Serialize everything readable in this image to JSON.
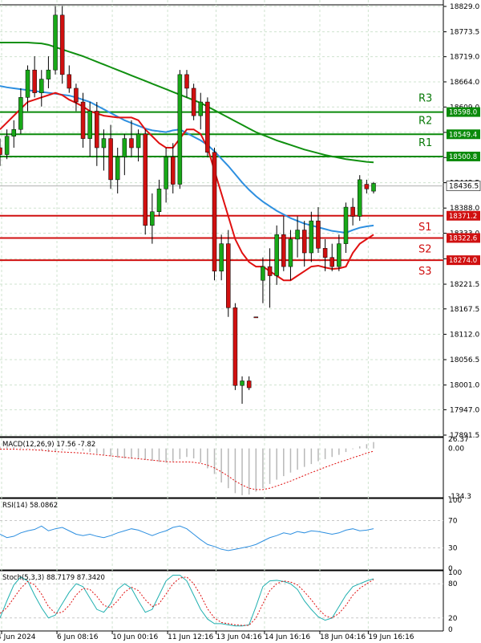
{
  "chart_data": [
    {
      "type": "candlestick",
      "symbol_pane": "main",
      "yticks": [
        "18829.0",
        "18773.5",
        "18719.0",
        "18664.0",
        "18609.0",
        "18553.5",
        "18498.5",
        "18443.5",
        "18388.0",
        "18333.0",
        "18277.0",
        "18221.5",
        "18167.5",
        "18112.0",
        "18056.5",
        "18001.0",
        "17947.0",
        "17891.5"
      ],
      "ylim": [
        17891.5,
        18829.0
      ],
      "xticks": [
        "4 Jun 2024",
        "6 Jun 08:16",
        "10 Jun 00:16",
        "11 Jun 12:16",
        "13 Jun 04:16",
        "14 Jun 16:16",
        "18 Jun 04:16",
        "19 Jun 16:16"
      ],
      "current_price": "18436.5",
      "levels": [
        {
          "name": "R3",
          "price": "18598.0",
          "value": 18598.0,
          "kind": "resistance",
          "color": "#0a8a0a"
        },
        {
          "name": "R2",
          "price": "18549.4",
          "value": 18549.4,
          "kind": "resistance",
          "color": "#0a8a0a"
        },
        {
          "name": "R1",
          "price": "18500.8",
          "value": 18500.8,
          "kind": "resistance",
          "color": "#0a8a0a"
        },
        {
          "name": "S1",
          "price": "18371.2",
          "value": 18371.2,
          "kind": "support",
          "color": "#d01010"
        },
        {
          "name": "S2",
          "price": "18322.6",
          "value": 18322.6,
          "kind": "support",
          "color": "#d01010"
        },
        {
          "name": "S3",
          "price": "18274.0",
          "value": 18274.0,
          "kind": "support",
          "color": "#d01010"
        }
      ],
      "candles": [
        [
          18520,
          18540,
          18480,
          18505
        ],
        [
          18505,
          18560,
          18495,
          18545
        ],
        [
          18545,
          18580,
          18520,
          18560
        ],
        [
          18560,
          18650,
          18550,
          18630
        ],
        [
          18630,
          18700,
          18600,
          18690
        ],
        [
          18690,
          18720,
          18630,
          18640
        ],
        [
          18640,
          18690,
          18610,
          18670
        ],
        [
          18670,
          18720,
          18650,
          18690
        ],
        [
          18690,
          18830,
          18680,
          18810
        ],
        [
          18810,
          18830,
          18660,
          18680
        ],
        [
          18680,
          18700,
          18640,
          18650
        ],
        [
          18650,
          18660,
          18600,
          18620
        ],
        [
          18620,
          18640,
          18520,
          18540
        ],
        [
          18540,
          18620,
          18500,
          18600
        ],
        [
          18600,
          18620,
          18480,
          18520
        ],
        [
          18520,
          18560,
          18470,
          18540
        ],
        [
          18540,
          18570,
          18430,
          18450
        ],
        [
          18450,
          18520,
          18420,
          18500
        ],
        [
          18500,
          18550,
          18460,
          18540
        ],
        [
          18540,
          18580,
          18500,
          18520
        ],
        [
          18520,
          18560,
          18490,
          18550
        ],
        [
          18550,
          18560,
          18330,
          18350
        ],
        [
          18350,
          18420,
          18310,
          18380
        ],
        [
          18380,
          18450,
          18370,
          18430
        ],
        [
          18430,
          18520,
          18400,
          18500
        ],
        [
          18500,
          18530,
          18420,
          18440
        ],
        [
          18440,
          18690,
          18430,
          18680
        ],
        [
          18680,
          18690,
          18630,
          18650
        ],
        [
          18650,
          18660,
          18580,
          18590
        ],
        [
          18590,
          18640,
          18560,
          18620
        ],
        [
          18620,
          18630,
          18500,
          18510
        ],
        [
          18510,
          18520,
          18230,
          18250
        ],
        [
          18250,
          18330,
          18230,
          18310
        ],
        [
          18310,
          18340,
          18150,
          18170
        ],
        [
          18170,
          18180,
          17990,
          18000
        ],
        [
          18000,
          18020,
          17960,
          18010
        ],
        [
          18010,
          18020,
          17990,
          17995
        ],
        [
          18150,
          18150,
          18148,
          18148
        ],
        [
          18230,
          18280,
          18180,
          18260
        ],
        [
          18260,
          18300,
          18170,
          18240
        ],
        [
          18240,
          18350,
          18220,
          18330
        ],
        [
          18330,
          18370,
          18250,
          18260
        ],
        [
          18260,
          18340,
          18230,
          18320
        ],
        [
          18320,
          18370,
          18280,
          18340
        ],
        [
          18340,
          18360,
          18260,
          18290
        ],
        [
          18290,
          18380,
          18270,
          18360
        ],
        [
          18360,
          18390,
          18290,
          18300
        ],
        [
          18300,
          18320,
          18250,
          18280
        ],
        [
          18280,
          18310,
          18250,
          18260
        ],
        [
          18260,
          18330,
          18250,
          18310
        ],
        [
          18310,
          18400,
          18290,
          18390
        ],
        [
          18390,
          18410,
          18350,
          18370
        ],
        [
          18370,
          18460,
          18360,
          18450
        ],
        [
          18440,
          18450,
          18420,
          18430
        ],
        [
          18425,
          18445,
          18420,
          18442
        ]
      ],
      "moving_averages": [
        {
          "color": "#109010",
          "values": [
            18750,
            18750,
            18750,
            18750,
            18750,
            18749,
            18748,
            18745,
            18740,
            18735,
            18730,
            18725,
            18720,
            18714,
            18708,
            18702,
            18696,
            18690,
            18684,
            18678,
            18672,
            18666,
            18660,
            18654,
            18648,
            18642,
            18636,
            18630,
            18624,
            18618,
            18610,
            18602,
            18594,
            18586,
            18578,
            18570,
            18562,
            18554,
            18548,
            18542,
            18536,
            18531,
            18526,
            18521,
            18516,
            18512,
            18508,
            18504,
            18501,
            18498,
            18495,
            18493,
            18491,
            18489,
            18488
          ]
        },
        {
          "color": "#2d8fe0",
          "values": [
            18655,
            18652,
            18650,
            18648,
            18646,
            18644,
            18642,
            18640,
            18638,
            18636,
            18634,
            18630,
            18625,
            18620,
            18612,
            18604,
            18596,
            18588,
            18580,
            18574,
            18568,
            18562,
            18558,
            18556,
            18554,
            18558,
            18560,
            18552,
            18544,
            18536,
            18526,
            18512,
            18496,
            18480,
            18462,
            18444,
            18428,
            18414,
            18402,
            18392,
            18382,
            18374,
            18366,
            18360,
            18354,
            18350,
            18346,
            18342,
            18338,
            18336,
            18334,
            18340,
            18345,
            18348,
            18350
          ]
        },
        {
          "color": "#e01010",
          "values": [
            18560,
            18575,
            18590,
            18605,
            18620,
            18625,
            18630,
            18635,
            18640,
            18635,
            18625,
            18618,
            18610,
            18600,
            18595,
            18590,
            18588,
            18586,
            18586,
            18586,
            18580,
            18560,
            18545,
            18530,
            18520,
            18520,
            18540,
            18560,
            18560,
            18550,
            18520,
            18470,
            18420,
            18370,
            18320,
            18290,
            18270,
            18260,
            18260,
            18250,
            18240,
            18230,
            18230,
            18240,
            18250,
            18260,
            18262,
            18258,
            18255,
            18256,
            18260,
            18290,
            18310,
            18320,
            18330
          ]
        }
      ]
    },
    {
      "type": "macd",
      "label": "MACD(12,26,9) 17.56 -7.82",
      "yticks": [
        "26.37",
        "0.00",
        "-134.3"
      ],
      "ylim": [
        -134.3,
        26.37
      ],
      "hist": [
        5,
        5,
        4,
        3,
        1,
        -2,
        -6,
        -10,
        -8,
        -5,
        -3,
        -4,
        -6,
        -10,
        -14,
        -18,
        -22,
        -26,
        -28,
        -29,
        -30,
        -32,
        -35,
        -38,
        -40,
        -36,
        -30,
        -24,
        -28,
        -40,
        -56,
        -72,
        -96,
        -112,
        -126,
        -132,
        -130,
        -122,
        -112,
        -100,
        -88,
        -78,
        -68,
        -60,
        -52,
        -44,
        -36,
        -30,
        -24,
        -18,
        -10,
        -2,
        6,
        12,
        18
      ],
      "signal": [
        -2,
        -2,
        -2,
        -3,
        -3,
        -4,
        -5,
        -7,
        -9,
        -10,
        -11,
        -12,
        -13,
        -15,
        -17,
        -19,
        -21,
        -23,
        -25,
        -27,
        -29,
        -31,
        -33,
        -35,
        -37,
        -38,
        -38,
        -38,
        -39,
        -42,
        -47,
        -55,
        -66,
        -78,
        -92,
        -103,
        -112,
        -116,
        -116,
        -112,
        -106,
        -99,
        -92,
        -84,
        -76,
        -68,
        -61,
        -53,
        -46,
        -39,
        -33,
        -26,
        -20,
        -13,
        -7.82
      ]
    },
    {
      "type": "rsi",
      "label": "RSI(14) 58.0862",
      "yticks": [
        "100",
        "70",
        "30",
        "0"
      ],
      "ylim": [
        0,
        100
      ],
      "values": [
        50,
        45,
        47,
        52,
        55,
        57,
        62,
        55,
        58,
        60,
        55,
        50,
        48,
        50,
        47,
        45,
        48,
        52,
        55,
        58,
        56,
        52,
        48,
        52,
        55,
        60,
        62,
        58,
        50,
        42,
        35,
        32,
        28,
        26,
        28,
        30,
        32,
        35,
        40,
        45,
        48,
        52,
        50,
        54,
        52,
        55,
        54,
        52,
        50,
        52,
        56,
        58,
        55,
        56,
        58.0862
      ]
    },
    {
      "type": "stochastic",
      "label": "Stoch(5,3,3) 88.7179 87.3420",
      "yticks": [
        "100",
        "80",
        "20",
        "0"
      ],
      "ylim": [
        0,
        100
      ],
      "k": [
        20,
        50,
        78,
        92,
        85,
        60,
        38,
        20,
        25,
        45,
        65,
        80,
        75,
        55,
        35,
        30,
        45,
        70,
        80,
        72,
        50,
        30,
        35,
        60,
        85,
        95,
        95,
        85,
        60,
        35,
        18,
        10,
        10,
        8,
        6,
        6,
        8,
        40,
        75,
        85,
        86,
        84,
        80,
        70,
        50,
        35,
        22,
        16,
        20,
        40,
        60,
        75,
        80,
        85,
        88.7179
      ],
      "d": [
        28,
        38,
        55,
        72,
        84,
        78,
        62,
        40,
        28,
        30,
        42,
        60,
        72,
        70,
        58,
        42,
        38,
        50,
        65,
        74,
        68,
        52,
        40,
        45,
        62,
        80,
        90,
        92,
        80,
        60,
        36,
        20,
        12,
        10,
        8,
        7,
        7,
        20,
        45,
        68,
        80,
        85,
        83,
        78,
        66,
        52,
        36,
        24,
        20,
        28,
        42,
        60,
        72,
        80,
        87.342
      ]
    }
  ]
}
